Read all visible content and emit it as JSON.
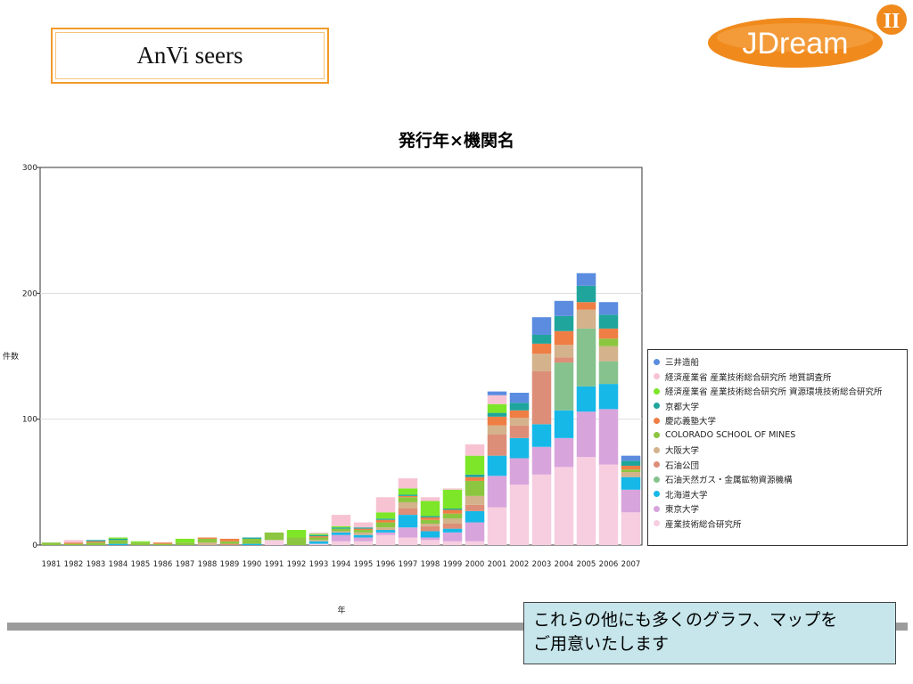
{
  "header": {
    "brand_text": "AnVi seers",
    "logo_text": "JDream",
    "logo_suffix": "II"
  },
  "colors": {
    "frame_orange": "#f29a2a",
    "logo_orange": "#f08a1c",
    "note_bg": "#c6e6ec"
  },
  "note": {
    "text": "これらの他にも多くのグラフ、マップを\nご用意いたします"
  },
  "chart_data": {
    "type": "bar",
    "stacked": true,
    "title": "発行年×機関名",
    "xlabel": "年",
    "ylabel": "件数",
    "ylim": [
      0,
      300
    ],
    "yticks": [
      0,
      100,
      200,
      300
    ],
    "grid": true,
    "legend_position": "right",
    "categories": [
      "1981",
      "1982",
      "1983",
      "1984",
      "1985",
      "1986",
      "1987",
      "1988",
      "1989",
      "1990",
      "1991",
      "1992",
      "1993",
      "1994",
      "1995",
      "1996",
      "1997",
      "1998",
      "1999",
      "2000",
      "2001",
      "2002",
      "2003",
      "2004",
      "2005",
      "2006",
      "2007"
    ],
    "series": [
      {
        "name": "産業技術総合研究所",
        "color": "#f7cde0",
        "values": [
          0,
          0,
          0,
          0,
          0,
          0,
          0,
          0,
          0,
          0,
          4,
          0,
          1,
          3,
          3,
          8,
          6,
          4,
          3,
          3,
          30,
          48,
          56,
          62,
          70,
          64,
          26
        ]
      },
      {
        "name": "東京大学",
        "color": "#d8a4dc",
        "values": [
          0,
          0,
          0,
          0,
          0,
          0,
          0,
          0,
          0,
          0,
          0,
          0,
          0,
          5,
          3,
          2,
          8,
          2,
          7,
          15,
          25,
          21,
          22,
          23,
          36,
          44,
          18
        ]
      },
      {
        "name": "北海道大学",
        "color": "#16b8e8",
        "values": [
          0,
          0,
          0,
          1,
          0,
          0,
          0,
          0,
          0,
          1,
          0,
          0,
          2,
          2,
          2,
          2,
          10,
          5,
          3,
          9,
          16,
          16,
          18,
          22,
          20,
          20,
          10
        ]
      },
      {
        "name": "石油天然ガス・金属鉱物資源機構",
        "color": "#86c28e",
        "values": [
          0,
          0,
          0,
          0,
          0,
          0,
          0,
          0,
          0,
          0,
          0,
          0,
          0,
          0,
          0,
          0,
          0,
          0,
          0,
          0,
          0,
          0,
          0,
          38,
          46,
          18,
          0
        ]
      },
      {
        "name": "石油公団",
        "color": "#dd8e78",
        "values": [
          0,
          0,
          0,
          0,
          0,
          0,
          0,
          0,
          1,
          0,
          0,
          0,
          0,
          0,
          0,
          0,
          5,
          4,
          4,
          5,
          17,
          10,
          42,
          4,
          0,
          0,
          0
        ]
      },
      {
        "name": "大阪大学",
        "color": "#d4b28c",
        "values": [
          0,
          0,
          0,
          0,
          0,
          0,
          0,
          2,
          0,
          0,
          0,
          0,
          1,
          1,
          2,
          2,
          5,
          2,
          4,
          7,
          7,
          6,
          14,
          10,
          15,
          12,
          4
        ]
      },
      {
        "name": "COLORADO SCHOOL OF MINES",
        "color": "#8cc640",
        "values": [
          2,
          1,
          2,
          3,
          2,
          1,
          2,
          3,
          2,
          4,
          6,
          6,
          2,
          2,
          2,
          4,
          4,
          3,
          4,
          12,
          0,
          0,
          0,
          0,
          0,
          6,
          2
        ]
      },
      {
        "name": "慶応義塾大学",
        "color": "#ef7e45",
        "values": [
          0,
          1,
          1,
          0,
          0,
          1,
          0,
          1,
          2,
          0,
          0,
          0,
          1,
          0,
          1,
          2,
          1,
          2,
          3,
          3,
          7,
          6,
          8,
          11,
          6,
          8,
          3
        ]
      },
      {
        "name": "京都大学",
        "color": "#1fa59c",
        "values": [
          0,
          0,
          1,
          1,
          0,
          0,
          0,
          0,
          0,
          1,
          0,
          0,
          1,
          1,
          1,
          1,
          1,
          1,
          1,
          2,
          3,
          6,
          7,
          12,
          13,
          11,
          4
        ]
      },
      {
        "name": "経済産業省 産業技術総合研究所 資源環境技術総合研究所",
        "color": "#7ee629",
        "values": [
          0,
          0,
          0,
          1,
          1,
          0,
          3,
          0,
          0,
          0,
          0,
          6,
          1,
          1,
          0,
          5,
          5,
          12,
          15,
          15,
          7,
          0,
          0,
          0,
          0,
          0,
          0
        ]
      },
      {
        "name": "経済産業省 産業技術総合研究所 地質調査所",
        "color": "#f7c3d3",
        "values": [
          0,
          2,
          0,
          0,
          0,
          0,
          0,
          0,
          0,
          0,
          0,
          0,
          1,
          9,
          4,
          12,
          8,
          3,
          1,
          9,
          7,
          0,
          0,
          0,
          0,
          0,
          0
        ]
      },
      {
        "name": "三井造船",
        "color": "#5b8ce0",
        "values": [
          0,
          0,
          0,
          0,
          0,
          0,
          0,
          0,
          0,
          0,
          0,
          0,
          0,
          0,
          0,
          0,
          0,
          0,
          0,
          0,
          3,
          8,
          14,
          12,
          10,
          10,
          4
        ]
      }
    ]
  }
}
